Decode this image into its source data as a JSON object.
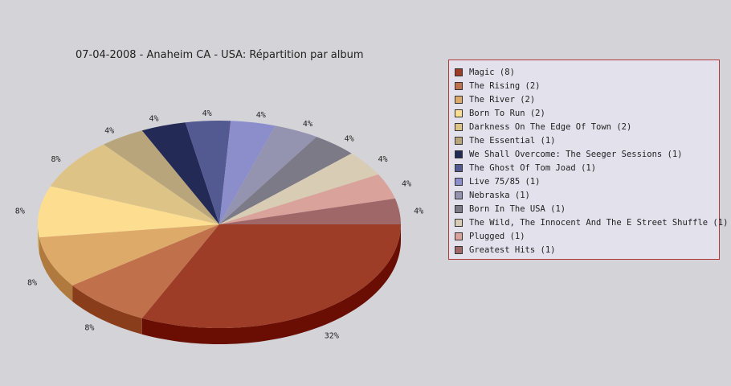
{
  "chart_data": {
    "type": "pie",
    "title": "07-04-2008 - Anaheim CA - USA:  Répartition par album",
    "legend_position": "right",
    "slices": [
      {
        "label": "Magic (8)",
        "value": 8,
        "percent_label": "32%",
        "color": "#9d3d27",
        "side_color": "#6a0e04"
      },
      {
        "label": "The Rising (2)",
        "value": 2,
        "percent_label": "8%",
        "color": "#c0714b",
        "side_color": "#8a3d1b"
      },
      {
        "label": "The River (2)",
        "value": 2,
        "percent_label": "8%",
        "color": "#deaa6a",
        "side_color": "#b07a3e"
      },
      {
        "label": "Born To Run (2)",
        "value": 2,
        "percent_label": "8%",
        "color": "#fddd8f",
        "side_color": "#c9a95e"
      },
      {
        "label": "Darkness On The Edge Of Town (2)",
        "value": 2,
        "percent_label": "8%",
        "color": "#ddc486",
        "side_color": "#ad9657"
      },
      {
        "label": "The Essential (1)",
        "value": 1,
        "percent_label": "4%",
        "color": "#b8a57c",
        "side_color": "#8a7852"
      },
      {
        "label": "We Shall Overcome: The Seeger Sessions (1)",
        "value": 1,
        "percent_label": "4%",
        "color": "#232a56",
        "side_color": "#141a3a"
      },
      {
        "label": "The Ghost Of Tom Joad (1)",
        "value": 1,
        "percent_label": "4%",
        "color": "#535991",
        "side_color": "#363c6a"
      },
      {
        "label": "Live 75/85 (1)",
        "value": 1,
        "percent_label": "4%",
        "color": "#8b8ecb",
        "side_color": "#5e61a0"
      },
      {
        "label": "Nebraska (1)",
        "value": 1,
        "percent_label": "4%",
        "color": "#9494b0",
        "side_color": "#686886"
      },
      {
        "label": "Born In The USA (1)",
        "value": 1,
        "percent_label": "4%",
        "color": "#7b7a86",
        "side_color": "#54535e"
      },
      {
        "label": "The Wild, The Innocent And The E Street Shuffle (1)",
        "value": 1,
        "percent_label": "4%",
        "color": "#d8ccb4",
        "side_color": "#a99d86"
      },
      {
        "label": "Plugged (1)",
        "value": 1,
        "percent_label": "4%",
        "color": "#d9a29a",
        "side_color": "#a8736c"
      },
      {
        "label": "Greatest Hits (1)",
        "value": 1,
        "percent_label": "4%",
        "color": "#9f6767",
        "side_color": "#6e3f3f"
      }
    ]
  }
}
